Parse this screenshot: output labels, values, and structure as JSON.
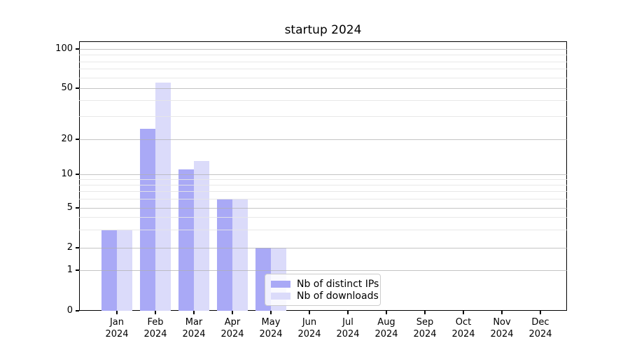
{
  "chart_data": {
    "type": "bar",
    "title": "startup 2024",
    "categories": [
      "Jan",
      "Feb",
      "Mar",
      "Apr",
      "May",
      "Jun",
      "Jul",
      "Aug",
      "Sep",
      "Oct",
      "Nov",
      "Dec"
    ],
    "category_year": "2024",
    "series": [
      {
        "name": "Nb of distinct IPs",
        "color": "#a9a9f6",
        "values": [
          3,
          24,
          11,
          6,
          2,
          0,
          0,
          0,
          0,
          0,
          0,
          0
        ]
      },
      {
        "name": "Nb of downloads",
        "color": "#dbdbfa",
        "values": [
          3,
          55,
          13,
          6,
          2,
          0,
          0,
          0,
          0,
          0,
          0,
          0
        ]
      }
    ],
    "yscale": "symlog",
    "y_ticks": [
      0,
      1,
      2,
      5,
      10,
      20,
      50,
      100
    ],
    "y_minor_ticks": [
      3,
      4,
      6,
      7,
      8,
      9,
      30,
      40,
      60,
      70,
      80,
      90
    ],
    "ylim": [
      0,
      110
    ],
    "grid": "horizontal major+minor",
    "legend_position": "lower center"
  }
}
